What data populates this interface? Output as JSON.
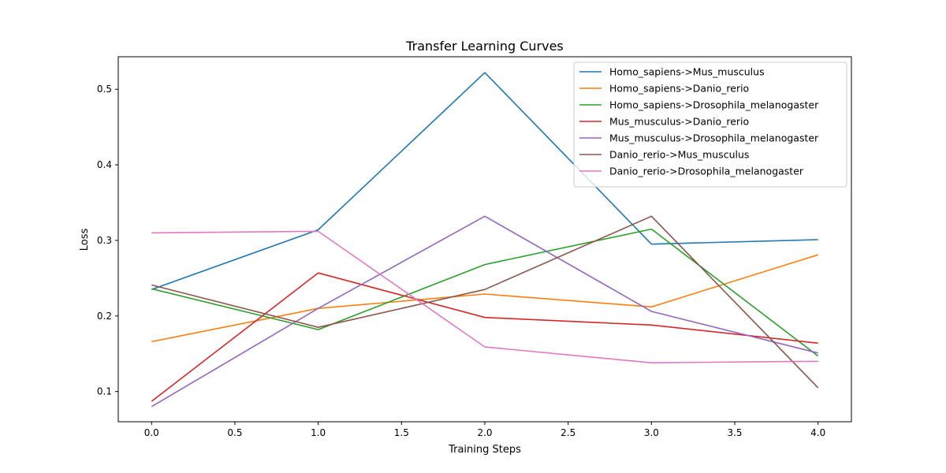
{
  "chart_data": {
    "type": "line",
    "title": "Transfer Learning Curves",
    "xlabel": "Training Steps",
    "ylabel": "Loss",
    "x": [
      0,
      1,
      2,
      3,
      4
    ],
    "xlim": [
      -0.2,
      4.2
    ],
    "ylim": [
      0.06,
      0.543
    ],
    "xticks": [
      0.0,
      0.5,
      1.0,
      1.5,
      2.0,
      2.5,
      3.0,
      3.5,
      4.0
    ],
    "xtick_labels": [
      "0.0",
      "0.5",
      "1.0",
      "1.5",
      "2.0",
      "2.5",
      "3.0",
      "3.5",
      "4.0"
    ],
    "yticks": [
      0.1,
      0.2,
      0.3,
      0.4,
      0.5
    ],
    "ytick_labels": [
      "0.1",
      "0.2",
      "0.3",
      "0.4",
      "0.5"
    ],
    "grid": false,
    "legend_position": "top-right",
    "series": [
      {
        "name": "Homo_sapiens->Mus_musculus",
        "color": "#1f77b4",
        "values": [
          0.235,
          0.314,
          0.522,
          0.295,
          0.301
        ]
      },
      {
        "name": "Homo_sapiens->Danio_rerio",
        "color": "#ff7f0e",
        "values": [
          0.166,
          0.21,
          0.229,
          0.212,
          0.281
        ]
      },
      {
        "name": "Homo_sapiens->Drosophila_melanogaster",
        "color": "#2ca02c",
        "values": [
          0.236,
          0.182,
          0.268,
          0.315,
          0.147
        ]
      },
      {
        "name": "Mus_musculus->Danio_rerio",
        "color": "#d62728",
        "values": [
          0.087,
          0.257,
          0.198,
          0.188,
          0.164
        ]
      },
      {
        "name": "Mus_musculus->Drosophila_melanogaster",
        "color": "#9467bd",
        "values": [
          0.08,
          0.21,
          0.332,
          0.206,
          0.151
        ]
      },
      {
        "name": "Danio_rerio->Mus_musculus",
        "color": "#8c564b",
        "values": [
          0.241,
          0.185,
          0.235,
          0.332,
          0.105
        ]
      },
      {
        "name": "Danio_rerio->Drosophila_melanogaster",
        "color": "#e377c2",
        "values": [
          0.31,
          0.312,
          0.159,
          0.138,
          0.14
        ]
      }
    ]
  }
}
